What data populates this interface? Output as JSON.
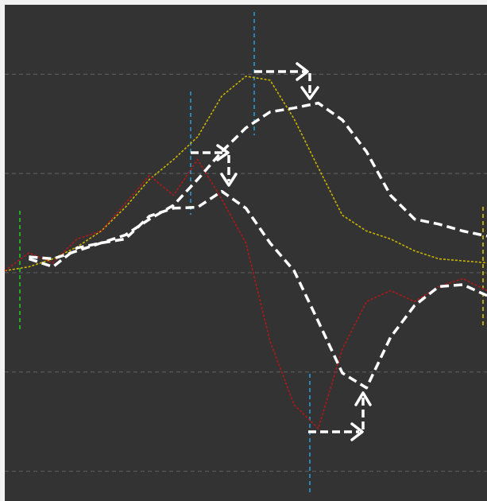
{
  "chart_data": {
    "type": "line",
    "x": [
      0,
      5,
      10,
      15,
      20,
      25,
      30,
      35,
      40,
      45,
      50,
      55,
      60,
      65,
      70,
      75,
      80,
      85,
      90,
      95,
      100
    ],
    "xlim": [
      0,
      100
    ],
    "ylim": [
      -2.3,
      2.7
    ],
    "yticks": [
      -2,
      -1,
      0,
      1,
      2
    ],
    "grid": true,
    "series": [
      {
        "color": "#c8b400",
        "style": "dotted",
        "values": [
          0.02,
          0.06,
          0.14,
          0.26,
          0.42,
          0.66,
          0.94,
          1.14,
          1.37,
          1.78,
          1.98,
          1.94,
          1.55,
          1.06,
          0.58,
          0.42,
          0.34,
          0.22,
          0.14,
          0.12,
          0.1
        ]
      },
      {
        "color": "#b01818",
        "style": "dotted",
        "values": [
          0.02,
          0.2,
          0.1,
          0.34,
          0.42,
          0.7,
          0.98,
          0.78,
          1.14,
          0.74,
          0.3,
          -0.69,
          -1.33,
          -1.57,
          -0.77,
          -0.29,
          -0.18,
          -0.29,
          -0.14,
          -0.06,
          -0.18
        ]
      },
      {
        "color": "#ffffff",
        "style": "dashed",
        "values": [
          null,
          0.16,
          0.14,
          0.22,
          0.3,
          0.38,
          0.54,
          0.68,
          0.94,
          1.22,
          1.46,
          1.62,
          1.66,
          1.71,
          1.54,
          1.22,
          0.78,
          0.54,
          0.49,
          0.42,
          0.37
        ]
      },
      {
        "color": "#ffffff",
        "style": "dashed",
        "values": [
          null,
          0.14,
          0.06,
          0.25,
          0.3,
          0.34,
          0.57,
          0.65,
          0.66,
          0.82,
          0.65,
          0.3,
          0.02,
          -0.49,
          -1.01,
          -1.16,
          -0.65,
          -0.33,
          -0.14,
          -0.12,
          -0.23
        ]
      }
    ]
  }
}
